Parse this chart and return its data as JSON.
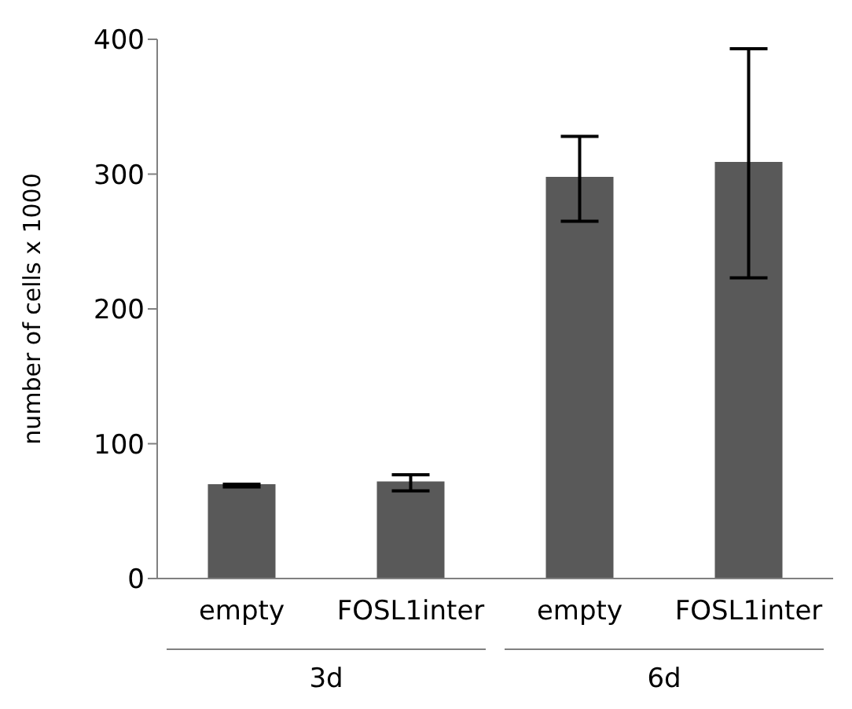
{
  "chart_data": {
    "type": "bar",
    "ylabel": "number of cells x 1000",
    "categories": [
      "empty",
      "FOSL1inter",
      "empty",
      "FOSL1inter"
    ],
    "values": [
      70,
      72,
      298,
      309
    ],
    "errors": [
      [
        68,
        70
      ],
      [
        65,
        77
      ],
      [
        265,
        328
      ],
      [
        223,
        393
      ]
    ],
    "color": "#595959",
    "ylim": [
      0,
      400
    ],
    "yticks": [
      0,
      100,
      200,
      300,
      400
    ],
    "annotations": [
      "3d",
      "6d"
    ]
  }
}
